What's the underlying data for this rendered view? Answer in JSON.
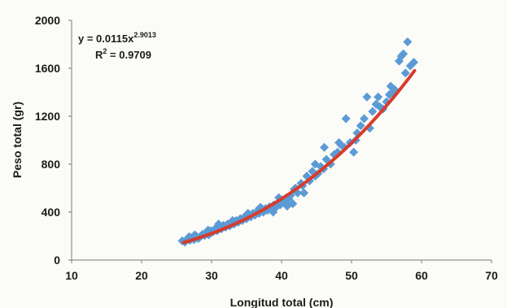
{
  "chart_data": {
    "type": "scatter",
    "title": "",
    "xlabel": "Longitud total (cm)",
    "ylabel": "Peso total (gr)",
    "xlim": [
      10,
      70
    ],
    "ylim": [
      0,
      2000
    ],
    "xticks": [
      10,
      20,
      30,
      40,
      50,
      60,
      70
    ],
    "yticks": [
      0,
      400,
      800,
      1200,
      1600,
      2000
    ],
    "grid": false,
    "legend": "none",
    "colors": {
      "points": "#5b9bd5",
      "trendline": "#d83b2b",
      "axis": "#555555"
    },
    "equation": {
      "prefix": "y = 0.0115x",
      "exponent": "2.9013",
      "r2_label": "R",
      "r2_exp": "2",
      "r2_value": " = 0.9709"
    },
    "trendline": {
      "type": "power",
      "a": 0.0115,
      "b": 2.9013,
      "x_range": [
        26,
        59
      ]
    },
    "series": [
      {
        "points": [
          [
            25.8,
            160
          ],
          [
            26.2,
            150
          ],
          [
            26.5,
            175
          ],
          [
            26.9,
            165
          ],
          [
            27.2,
            185
          ],
          [
            27.5,
            170
          ],
          [
            27.8,
            200
          ],
          [
            28.1,
            180
          ],
          [
            28.4,
            195
          ],
          [
            28.7,
            215
          ],
          [
            29.0,
            205
          ],
          [
            29.3,
            230
          ],
          [
            29.6,
            210
          ],
          [
            29.9,
            245
          ],
          [
            30.2,
            235
          ],
          [
            30.5,
            260
          ],
          [
            30.8,
            245
          ],
          [
            31.1,
            275
          ],
          [
            31.4,
            260
          ],
          [
            31.7,
            290
          ],
          [
            32.0,
            275
          ],
          [
            32.3,
            300
          ],
          [
            32.6,
            285
          ],
          [
            32.9,
            315
          ],
          [
            33.2,
            300
          ],
          [
            33.5,
            330
          ],
          [
            33.8,
            315
          ],
          [
            34.1,
            345
          ],
          [
            34.4,
            330
          ],
          [
            34.7,
            360
          ],
          [
            35.0,
            345
          ],
          [
            35.3,
            375
          ],
          [
            35.6,
            360
          ],
          [
            35.9,
            390
          ],
          [
            36.2,
            375
          ],
          [
            36.5,
            405
          ],
          [
            36.8,
            390
          ],
          [
            37.1,
            420
          ],
          [
            37.4,
            400
          ],
          [
            37.7,
            430
          ],
          [
            38.0,
            415
          ],
          [
            38.3,
            445
          ],
          [
            38.6,
            430
          ],
          [
            38.9,
            460
          ],
          [
            39.2,
            440
          ],
          [
            39.5,
            480
          ],
          [
            39.8,
            460
          ],
          [
            40.1,
            500
          ],
          [
            40.4,
            490
          ],
          [
            40.7,
            520
          ],
          [
            41.0,
            510
          ],
          [
            41.3,
            540
          ],
          [
            41.6,
            470
          ],
          [
            42.0,
            600
          ],
          [
            42.3,
            560
          ],
          [
            42.8,
            640
          ],
          [
            43.2,
            560
          ],
          [
            43.6,
            700
          ],
          [
            44.0,
            660
          ],
          [
            44.4,
            740
          ],
          [
            44.8,
            700
          ],
          [
            45.2,
            720
          ],
          [
            45.6,
            780
          ],
          [
            46.0,
            760
          ],
          [
            46.4,
            840
          ],
          [
            46.1,
            940
          ],
          [
            47.0,
            800
          ],
          [
            47.5,
            880
          ],
          [
            48.0,
            900
          ],
          [
            48.5,
            960
          ],
          [
            49.0,
            940
          ],
          [
            49.2,
            1180
          ],
          [
            49.8,
            980
          ],
          [
            50.3,
            900
          ],
          [
            50.8,
            1060
          ],
          [
            51.3,
            1120
          ],
          [
            51.8,
            1180
          ],
          [
            52.2,
            1360
          ],
          [
            52.6,
            1100
          ],
          [
            53.0,
            1240
          ],
          [
            53.5,
            1300
          ],
          [
            54.0,
            1280
          ],
          [
            54.5,
            1260
          ],
          [
            55.0,
            1320
          ],
          [
            55.4,
            1380
          ],
          [
            55.8,
            1400
          ],
          [
            56.2,
            1420
          ],
          [
            56.8,
            1660
          ],
          [
            57.1,
            1700
          ],
          [
            57.4,
            1720
          ],
          [
            57.7,
            1560
          ],
          [
            58.0,
            1820
          ],
          [
            58.4,
            1620
          ],
          [
            58.9,
            1650
          ],
          [
            35.2,
            390
          ],
          [
            37.0,
            440
          ],
          [
            38.8,
            400
          ],
          [
            33.0,
            330
          ],
          [
            31.0,
            300
          ],
          [
            29.5,
            250
          ],
          [
            27.6,
            210
          ],
          [
            26.8,
            195
          ],
          [
            36.8,
            430
          ],
          [
            39.6,
            520
          ],
          [
            40.8,
            450
          ],
          [
            41.8,
            590
          ],
          [
            43.0,
            620
          ],
          [
            44.8,
            800
          ],
          [
            48.2,
            980
          ],
          [
            50.6,
            1000
          ],
          [
            53.8,
            1360
          ],
          [
            55.6,
            1450
          ]
        ]
      }
    ]
  }
}
